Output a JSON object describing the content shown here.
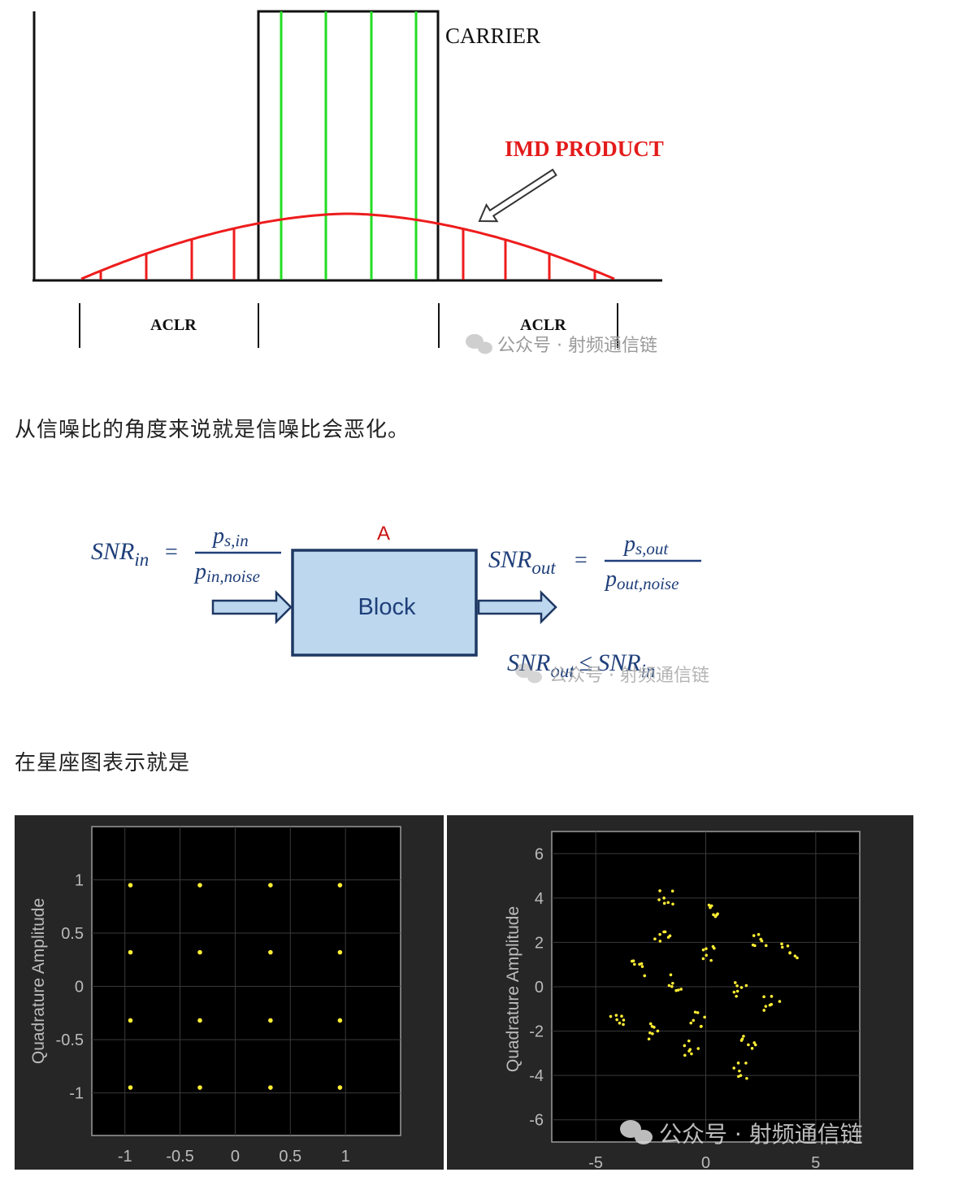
{
  "spectrum": {
    "carrier_label": "CARRIER",
    "imd_label": "IMD PRODUCT",
    "aclr_left": "ACLR",
    "aclr_right": "ACLR",
    "watermark": "公众号 · 射频通信链",
    "colors": {
      "carrier_lines": "#22dd22",
      "imd_curve": "#ee1c1c",
      "imd_label": "#e41b1b",
      "axis": "#111111"
    }
  },
  "paragraph1": "从信噪比的角度来说就是信噪比会恶化。",
  "snr": {
    "snr_in_main": "SNR",
    "snr_in_sub": "in",
    "equals": "=",
    "in_num_main": "p",
    "in_num_sub": "s,in",
    "in_den_main": "p",
    "in_den_sub": "in,noise",
    "block_name": "A",
    "block_label": "Block",
    "snr_out_main": "SNR",
    "snr_out_sub": "out",
    "out_num_main": "p",
    "out_num_sub": "s,out",
    "out_den_main": "p",
    "out_den_sub": "out,noise",
    "ineq_left_main": "SNR",
    "ineq_left_sub": "out",
    "ineq_op": "≤",
    "ineq_right_main": "SNR",
    "ineq_right_sub": "in",
    "watermark": "公众号 · 射频通信链",
    "colors": {
      "formula": "#1f3f7a",
      "block_fill": "#bdd7ee",
      "block_border": "#1f3864",
      "block_name": "#cc1111"
    }
  },
  "paragraph2": "在星座图表示就是",
  "chart_data": [
    {
      "type": "scatter",
      "title": "",
      "xlabel": "",
      "ylabel": "Quadrature Amplitude",
      "xlim": [
        -1.3,
        1.5
      ],
      "ylim": [
        -1.4,
        1.5
      ],
      "x_ticks": [
        "-1",
        "-0.5",
        "0",
        "0.5",
        "1"
      ],
      "y_ticks": [
        "1",
        "0.5",
        "0",
        "-0.5",
        "-1"
      ],
      "grid": true,
      "point_color": "#ffee33",
      "series": [
        {
          "points": [
            [
              -0.95,
              0.95
            ],
            [
              -0.32,
              0.95
            ],
            [
              0.32,
              0.95
            ],
            [
              0.95,
              0.95
            ],
            [
              -0.95,
              0.32
            ],
            [
              -0.32,
              0.32
            ],
            [
              0.32,
              0.32
            ],
            [
              0.95,
              0.32
            ],
            [
              -0.95,
              -0.32
            ],
            [
              -0.32,
              -0.32
            ],
            [
              0.32,
              -0.32
            ],
            [
              0.95,
              -0.32
            ],
            [
              -0.95,
              -0.95
            ],
            [
              -0.32,
              -0.95
            ],
            [
              0.32,
              -0.95
            ],
            [
              0.95,
              -0.95
            ]
          ]
        }
      ]
    },
    {
      "type": "scatter",
      "title": "",
      "xlabel": "",
      "ylabel": "Quadrature Amplitude",
      "xlim": [
        -7,
        7
      ],
      "ylim": [
        -7,
        7
      ],
      "x_ticks": [
        "-5",
        "0",
        "5"
      ],
      "y_ticks": [
        "6",
        "4",
        "2",
        "0",
        "-2",
        "-4",
        "-6"
      ],
      "grid": true,
      "point_color": "#ffee33",
      "watermark": "公众号 · 射频通信链",
      "series": [
        {
          "clusters": [
            [
              -1.8,
              4.0
            ],
            [
              0.5,
              3.4
            ],
            [
              -2.0,
              2.4
            ],
            [
              0.1,
              1.5
            ],
            [
              2.4,
              2.0
            ],
            [
              3.8,
              1.6
            ],
            [
              -3.0,
              0.8
            ],
            [
              -1.3,
              0.2
            ],
            [
              1.5,
              -0.1
            ],
            [
              3.0,
              -0.7
            ],
            [
              -4.0,
              -1.6
            ],
            [
              -2.5,
              -2.0
            ],
            [
              -0.3,
              -1.5
            ],
            [
              1.9,
              -2.5
            ],
            [
              -0.6,
              -2.8
            ],
            [
              1.6,
              -3.8
            ]
          ]
        }
      ]
    }
  ]
}
